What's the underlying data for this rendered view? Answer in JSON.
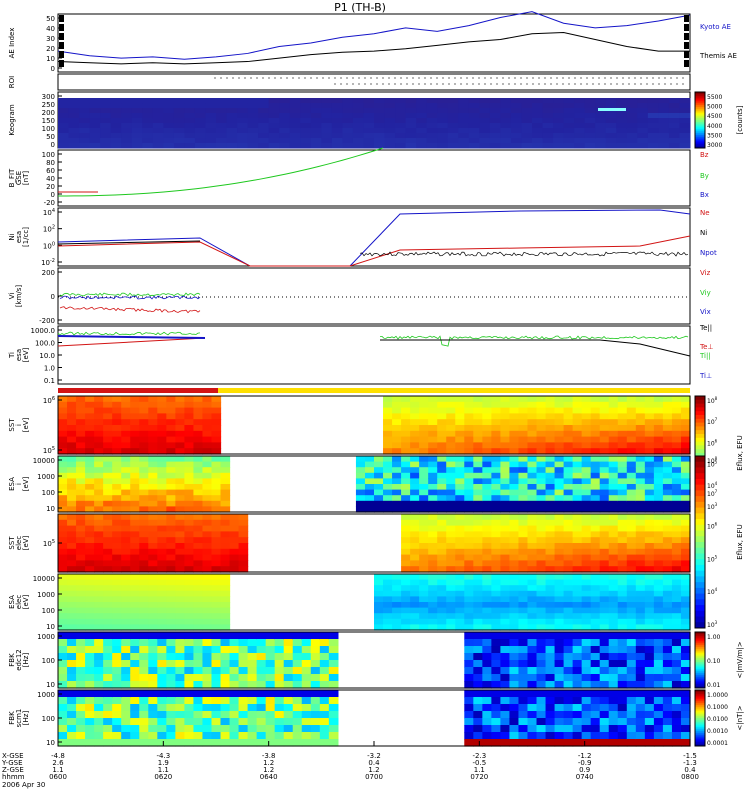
{
  "title": "P1 (TH-B)",
  "colors": {
    "red": "#d21414",
    "green": "#1ec81e",
    "blue": "#1414c8",
    "black": "#000000"
  },
  "chart_data": [
    {
      "type": "line",
      "id": "ae",
      "ylabel": "AE Index",
      "ylim": [
        0,
        50
      ],
      "yticks": [
        "50",
        "40",
        "30",
        "20",
        "10",
        "0"
      ],
      "series": [
        {
          "name": "Kyoto AE",
          "color": "#1414c8",
          "x": [
            0,
            0.05,
            0.1,
            0.15,
            0.2,
            0.25,
            0.3,
            0.35,
            0.4,
            0.45,
            0.5,
            0.55,
            0.6,
            0.65,
            0.7,
            0.75,
            0.8,
            0.85,
            0.9,
            0.95,
            1
          ],
          "y": [
            18,
            14,
            12,
            13,
            11,
            13,
            16,
            22,
            25,
            30,
            33,
            38,
            35,
            40,
            47,
            52,
            42,
            38,
            40,
            44,
            49
          ]
        },
        {
          "name": "Themis AE",
          "color": "#000000",
          "x": [
            0,
            0.05,
            0.1,
            0.15,
            0.2,
            0.25,
            0.3,
            0.35,
            0.4,
            0.45,
            0.5,
            0.55,
            0.6,
            0.65,
            0.7,
            0.75,
            0.8,
            0.85,
            0.9,
            0.95,
            1
          ],
          "y": [
            9,
            8,
            7,
            8,
            7,
            8,
            9,
            12,
            15,
            17,
            18,
            20,
            23,
            26,
            28,
            33,
            34,
            28,
            22,
            18,
            18
          ]
        }
      ]
    },
    {
      "type": "line",
      "id": "roi",
      "ylabel": "ROI",
      "yticks": []
    },
    {
      "type": "heatmap",
      "id": "keogram",
      "ylabel": "Keogram",
      "ylim": [
        0,
        300
      ],
      "yticks": [
        "300",
        "250",
        "200",
        "150",
        "100",
        "50",
        "0"
      ],
      "colorbar": {
        "label": "[counts]",
        "ticks": [
          "5500",
          "5000",
          "4500",
          "4000",
          "3500",
          "3000"
        ]
      }
    },
    {
      "type": "line",
      "id": "bfit",
      "ylabel": "B_FIT\nGSE\n[nT]",
      "ylim": [
        -30,
        100
      ],
      "yticks": [
        "100",
        "80",
        "60",
        "40",
        "20",
        "0",
        "-20"
      ],
      "series": [
        {
          "name": "Bz",
          "color": "#d21414"
        },
        {
          "name": "By",
          "color": "#1ec81e"
        },
        {
          "name": "Bx",
          "color": "#1414c8"
        }
      ]
    },
    {
      "type": "line",
      "id": "ni",
      "ylabel": "Ni\nesa\n[1/cc]",
      "log": true,
      "yticks": [
        "10^4",
        "10^2",
        "10^0",
        "10^-2"
      ],
      "series": [
        {
          "name": "Ne",
          "color": "#d21414"
        },
        {
          "name": "Ni",
          "color": "#000000"
        },
        {
          "name": "Npot",
          "color": "#1414c8"
        }
      ]
    },
    {
      "type": "line",
      "id": "vi",
      "ylabel": "Vi\n[km/s]",
      "ylim": [
        -300,
        300
      ],
      "yticks": [
        "200",
        "0",
        "-200"
      ],
      "series": [
        {
          "name": "Viz",
          "color": "#d21414"
        },
        {
          "name": "Viy",
          "color": "#1ec81e"
        },
        {
          "name": "Vix",
          "color": "#1414c8"
        }
      ]
    },
    {
      "type": "line",
      "id": "ti",
      "ylabel": "Ti\nesa\n[eV]",
      "log": true,
      "yticks": [
        "1000.0",
        "100.0",
        "10.0",
        "1.0",
        "0.1"
      ],
      "series": [
        {
          "name": "Te||",
          "color": "#000000"
        },
        {
          "name": "Te⊥",
          "color": "#d21414"
        },
        {
          "name": "Ti||",
          "color": "#1ec81e"
        },
        {
          "name": "Ti⊥",
          "color": "#1414c8"
        }
      ]
    },
    {
      "type": "heatmap",
      "id": "sst_i",
      "ylabel": "SST\ni\n[eV]",
      "yticks": [
        "10^6",
        "10^5"
      ]
    },
    {
      "type": "heatmap",
      "id": "esa_i",
      "ylabel": "ESA\ni\n[eV]",
      "yticks": [
        "10000",
        "1000",
        "100",
        "10"
      ]
    },
    {
      "type": "heatmap",
      "id": "sst_e",
      "ylabel": "SST\nelec\n[eV]",
      "yticks": [
        "10^5"
      ]
    },
    {
      "type": "heatmap",
      "id": "esa_e",
      "ylabel": "ESA\nelec\n[eV]",
      "yticks": [
        "10000",
        "1000",
        "100",
        "10"
      ]
    },
    {
      "type": "heatmap",
      "id": "fbk_e",
      "ylabel": "FBK\nedc12\n[Hz]",
      "yticks": [
        "1000",
        "100",
        "10"
      ]
    },
    {
      "type": "heatmap",
      "id": "fbk_b",
      "ylabel": "FBK\nscm1\n[Hz]",
      "yticks": [
        "1000",
        "100",
        "10"
      ]
    }
  ],
  "colorbars": {
    "eflux_labels": [
      "Eflux, EFU",
      "Eflux, EFU",
      "Eflux, EFU",
      "Eflux, EFU"
    ],
    "eflux_ticks_1": [
      "10^8",
      "10^7",
      "10^6",
      "10^5",
      "10^4",
      "10^3"
    ],
    "eflux_ticks_2": [
      "10^8",
      "10^7",
      "10^6",
      "10^5",
      "10^4",
      "10^3"
    ],
    "eflux_ticks_3": [
      "10^8",
      "10^7",
      "10^6",
      "10^5",
      "10^4",
      "10^3"
    ],
    "eflux_ticks_4": [
      "10^8",
      "10^7",
      "10^6",
      "10^5",
      "10^4",
      "10^3"
    ],
    "fbk_e_label": "<|mV/m|>",
    "fbk_e_ticks": [
      "1.00",
      "0.10",
      "0.01"
    ],
    "fbk_b_label": "<|nT|>",
    "fbk_b_ticks": [
      "1.0000",
      "0.1000",
      "0.0100",
      "0.0010",
      "0.0001"
    ]
  },
  "xaxis": {
    "row_labels": [
      "X-GSE",
      "Y-GSE",
      "Z-GSE",
      "hhmm",
      "2006 Apr 30"
    ],
    "ticks": [
      [
        "-4.8",
        "2.6",
        "1.1",
        "0600"
      ],
      [
        "-4.3",
        "1.9",
        "1.1",
        "0620"
      ],
      [
        "-3.8",
        "1.2",
        "1.2",
        "0640"
      ],
      [
        "-3.2",
        "0.4",
        "1.2",
        "0700"
      ],
      [
        "-2.3",
        "-0.5",
        "1.1",
        "0720"
      ],
      [
        "-1.2",
        "-0.9",
        "0.9",
        "0740"
      ],
      [
        "-1.5",
        "-1.3",
        "0.4",
        "0800"
      ]
    ]
  }
}
